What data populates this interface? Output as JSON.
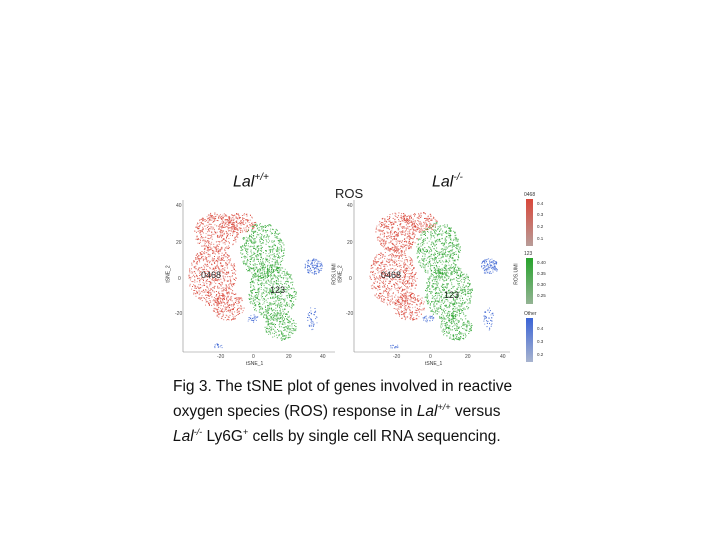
{
  "figure": {
    "left_title": {
      "base": "Lal",
      "sup": "+/+"
    },
    "right_title": {
      "base": "Lal",
      "sup": "-/-"
    },
    "center_title": "ROS",
    "left_plot": {
      "y_ticks": [
        "40",
        "20",
        "0",
        "-20"
      ],
      "x_ticks": [
        "-20",
        "0",
        "20",
        "40"
      ],
      "x_label": "tSNE_1",
      "y_label": "tSNE_2",
      "cluster_labels": [
        "0468",
        "123"
      ]
    },
    "right_plot": {
      "y_ticks": [
        "40",
        "20",
        "0",
        "-20"
      ],
      "x_ticks": [
        "-20",
        "0",
        "20",
        "40"
      ],
      "x_label": "tSNE_1",
      "y_label": "tSNE_2",
      "left_axis_label": "ROS.UMI",
      "right_axis_label": "ROS.UMI",
      "cluster_labels": [
        "0468",
        "123"
      ]
    },
    "legend": [
      {
        "title": "0468",
        "ticks": [
          "0.4",
          "0.3",
          "0.2",
          "0.1"
        ],
        "color_high": "#d9473a",
        "color_low": "#b89c98"
      },
      {
        "title": "123",
        "ticks": [
          "0.40",
          "0.35",
          "0.30",
          "0.25"
        ],
        "color_high": "#27a32c",
        "color_low": "#93b393"
      },
      {
        "title": "Other",
        "ticks": [
          "0.4",
          "0.3",
          "0.2"
        ],
        "color_high": "#3a63d6",
        "color_low": "#a8b4cf"
      }
    ],
    "colors": {
      "red_cluster": "#d9473a",
      "green_cluster": "#2ea532",
      "blue_cluster": "#3b64d3"
    }
  },
  "caption": {
    "line1": "Fig 3. The tSNE plot of genes involved in reactive",
    "line2_a": "oxygen species (ROS) response in ",
    "line2_b": "Lal",
    "line2_sup": "+/+",
    "line2_c": " versus",
    "line3_a": "Lal",
    "line3_sup": "-/-",
    "line3_b": " Ly6G",
    "line3_sup2": "+",
    "line3_c": " cells by single cell RNA sequencing."
  }
}
